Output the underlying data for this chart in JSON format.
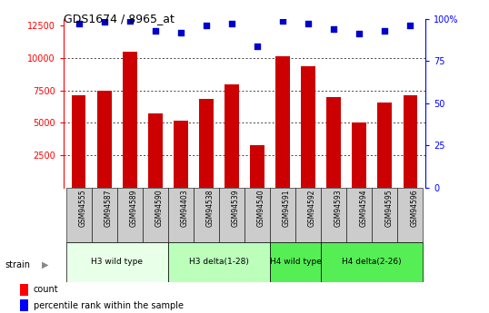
{
  "title": "GDS1674 / 8965_at",
  "samples": [
    "GSM94555",
    "GSM94587",
    "GSM94589",
    "GSM94590",
    "GSM94403",
    "GSM94538",
    "GSM94539",
    "GSM94540",
    "GSM94591",
    "GSM94592",
    "GSM94593",
    "GSM94594",
    "GSM94595",
    "GSM94596"
  ],
  "counts": [
    7100,
    7500,
    10450,
    5750,
    5150,
    6850,
    7950,
    3300,
    10150,
    9350,
    7000,
    5000,
    6550,
    7100
  ],
  "percentiles": [
    97,
    98,
    99,
    93,
    92,
    96,
    97,
    84,
    99,
    97,
    94,
    91,
    93,
    96
  ],
  "strain_groups": [
    {
      "label": "H3 wild type",
      "start": 0,
      "end": 3,
      "color": "#e8ffe8"
    },
    {
      "label": "H3 delta(1-28)",
      "start": 4,
      "end": 7,
      "color": "#bbffbb"
    },
    {
      "label": "H4 wild type",
      "start": 8,
      "end": 9,
      "color": "#55ee55"
    },
    {
      "label": "H4 delta(2-26)",
      "start": 10,
      "end": 13,
      "color": "#55ee55"
    }
  ],
  "bar_color": "#cc0000",
  "dot_color": "#0000cc",
  "ylim_left": [
    0,
    13000
  ],
  "ylim_right": [
    0,
    100
  ],
  "yticks_left": [
    2500,
    5000,
    7500,
    10000,
    12500
  ],
  "yticks_right": [
    0,
    25,
    50,
    75,
    100
  ],
  "grid_values": [
    2500,
    5000,
    7500,
    10000
  ],
  "bar_width": 0.55,
  "sample_cell_color": "#cccccc",
  "plot_bg": "#ffffff"
}
